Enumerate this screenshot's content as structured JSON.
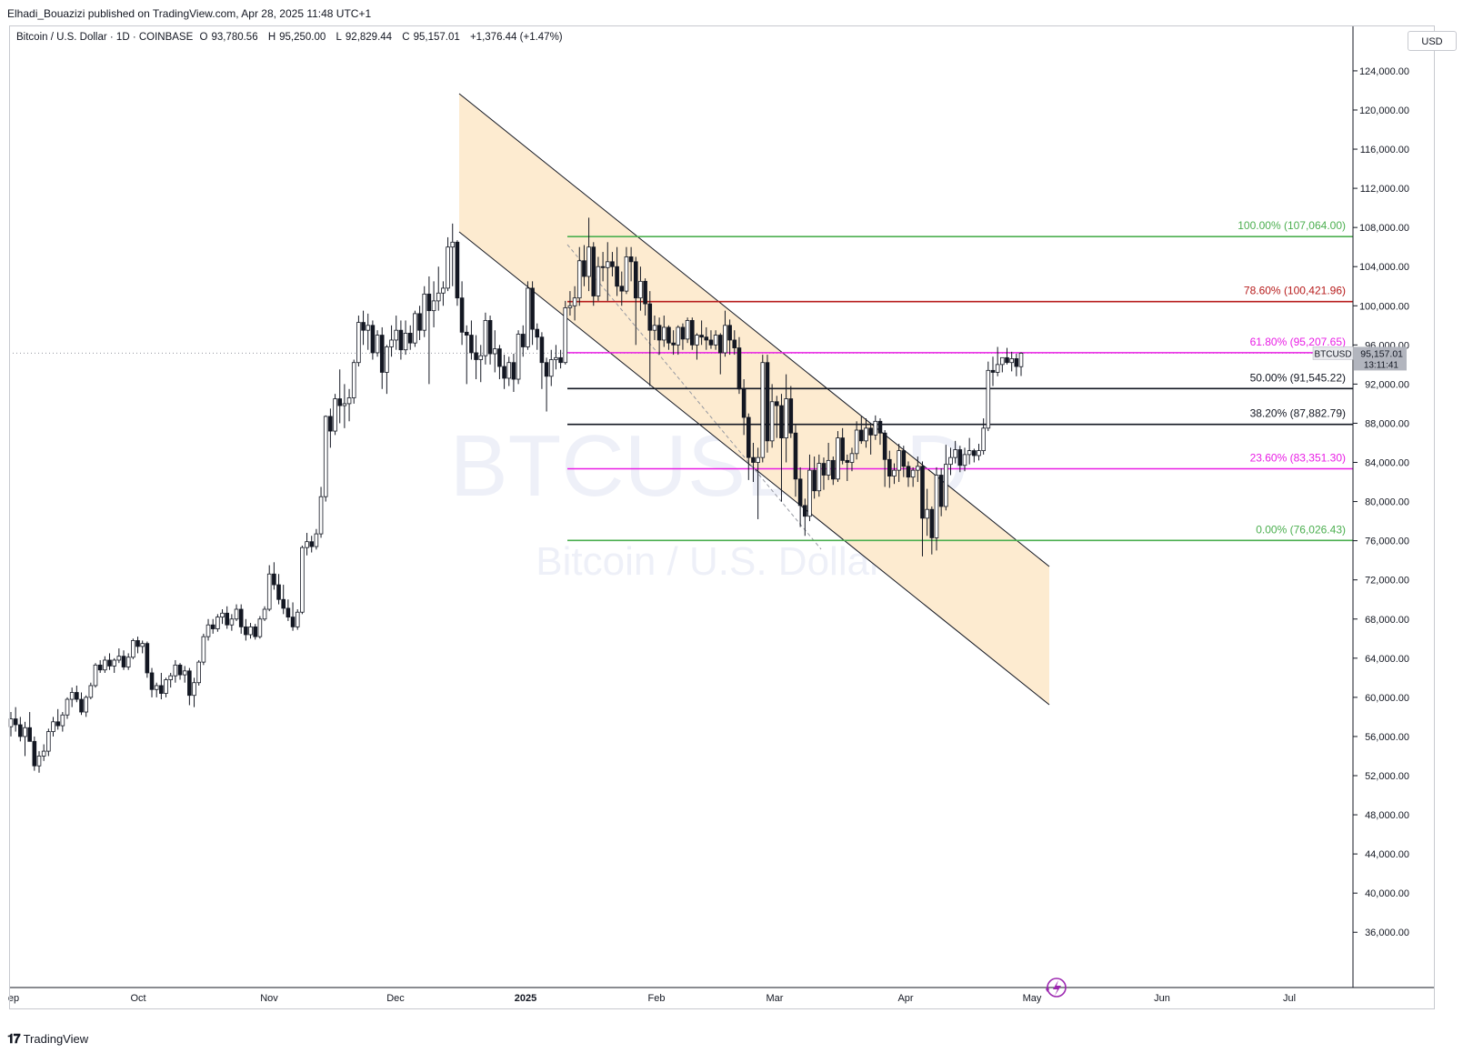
{
  "header": {
    "published": "Elhadi_Bouazizi published on TradingView.com, Apr 28, 2025 11:48 UTC+1"
  },
  "legend": {
    "symbol": "Bitcoin / U.S. Dollar · 1D · COINBASE",
    "o_label": "O",
    "o": "93,780.56",
    "h_label": "H",
    "h": "95,250.00",
    "l_label": "L",
    "l": "92,829.44",
    "c_label": "C",
    "c": "95,157.01",
    "change": "+1,376.44 (+1.47%)"
  },
  "currency": "USD",
  "watermark": {
    "ticker": "BTCUSD, 1D",
    "name": "Bitcoin / U.S. Dollar"
  },
  "price_label": {
    "symbol": "BTCUSD",
    "price": "95,157.01",
    "countdown": "13:11:41"
  },
  "footer": {
    "brand": "TradingView"
  },
  "colors": {
    "up": "#ffffff",
    "down": "#131722",
    "channel_fill": "#fdebd0",
    "grey_label": "#b2b5be"
  },
  "chart_data": {
    "type": "candlestick",
    "y_ticks": [
      "124,000.00",
      "120,000.00",
      "116,000.00",
      "112,000.00",
      "108,000.00",
      "104,000.00",
      "100,000.00",
      "96,000.00",
      "92,000.00",
      "88,000.00",
      "84,000.00",
      "80,000.00",
      "76,000.00",
      "72,000.00",
      "68,000.00",
      "64,000.00",
      "60,000.00",
      "56,000.00",
      "52,000.00",
      "48,000.00",
      "44,000.00",
      "40,000.00",
      "36,000.00"
    ],
    "ylim": [
      33000,
      129000
    ],
    "x_ticks": [
      "ep",
      "Oct",
      "Nov",
      "Dec",
      "2025",
      "Feb",
      "Mar",
      "Apr",
      "May",
      "Jun",
      "Jul"
    ],
    "fib_levels": [
      {
        "ratio": 1.0,
        "label": "100.00% (107,064.00)",
        "price": 107064.0,
        "color": "#4caf50"
      },
      {
        "ratio": 0.786,
        "label": "78.60% (100,421.96)",
        "price": 100421.96,
        "color": "#b71c1c"
      },
      {
        "ratio": 0.618,
        "label": "61.80% (95,207.65)",
        "price": 95207.65,
        "color": "#e91ee5"
      },
      {
        "ratio": 0.5,
        "label": "50.00% (91,545.22)",
        "price": 91545.22,
        "color": "#131722"
      },
      {
        "ratio": 0.382,
        "label": "38.20% (87,882.79)",
        "price": 87882.79,
        "color": "#131722"
      },
      {
        "ratio": 0.236,
        "label": "23.60% (83,351.30)",
        "price": 83351.3,
        "color": "#e91ee5"
      },
      {
        "ratio": 0.0,
        "label": "0.00% (76,026.43)",
        "price": 76026.43,
        "color": "#4caf50"
      }
    ],
    "last_price": 95157.01,
    "candles": [
      [
        57000,
        58500,
        56000,
        57800
      ],
      [
        57800,
        59000,
        56500,
        57200
      ],
      [
        57200,
        58000,
        55500,
        56000
      ],
      [
        56000,
        57500,
        54000,
        56900
      ],
      [
        56900,
        58500,
        56000,
        55500
      ],
      [
        55500,
        56000,
        52500,
        53000
      ],
      [
        53000,
        54500,
        52300,
        54000
      ],
      [
        54000,
        55200,
        53500,
        54500
      ],
      [
        54500,
        56800,
        54000,
        56500
      ],
      [
        56500,
        58000,
        56000,
        57500
      ],
      [
        57500,
        58800,
        56700,
        57100
      ],
      [
        57100,
        58500,
        56500,
        58200
      ],
      [
        58200,
        60000,
        57800,
        59800
      ],
      [
        59800,
        61000,
        59000,
        60500
      ],
      [
        60500,
        61200,
        59500,
        59800
      ],
      [
        59800,
        60500,
        58200,
        58500
      ],
      [
        58500,
        60200,
        58000,
        60000
      ],
      [
        60000,
        61500,
        59800,
        61200
      ],
      [
        61200,
        63500,
        61000,
        63300
      ],
      [
        63300,
        63800,
        62500,
        62800
      ],
      [
        62800,
        64200,
        62500,
        63800
      ],
      [
        63800,
        64500,
        62800,
        63200
      ],
      [
        63200,
        64000,
        62500,
        63800
      ],
      [
        63800,
        65000,
        63500,
        64200
      ],
      [
        64200,
        64800,
        62800,
        63100
      ],
      [
        63100,
        64500,
        62800,
        64100
      ],
      [
        64100,
        66000,
        63900,
        65800
      ],
      [
        65800,
        66200,
        64500,
        65200
      ],
      [
        65200,
        65800,
        64500,
        65500
      ],
      [
        65500,
        65700,
        62000,
        62500
      ],
      [
        62500,
        63000,
        60000,
        60800
      ],
      [
        60800,
        61500,
        60000,
        61200
      ],
      [
        61200,
        62500,
        59800,
        60400
      ],
      [
        60400,
        62000,
        60000,
        61800
      ],
      [
        61800,
        62500,
        61000,
        62200
      ],
      [
        62200,
        63800,
        61500,
        63300
      ],
      [
        63300,
        63500,
        61800,
        62300
      ],
      [
        62300,
        63200,
        61500,
        62700
      ],
      [
        62700,
        63000,
        59200,
        60200
      ],
      [
        60200,
        62000,
        59000,
        61500
      ],
      [
        61500,
        63800,
        61200,
        63600
      ],
      [
        63600,
        66500,
        63300,
        66200
      ],
      [
        66200,
        68000,
        65800,
        67400
      ],
      [
        67400,
        68000,
        66500,
        67000
      ],
      [
        67000,
        68500,
        66700,
        68200
      ],
      [
        68200,
        69000,
        67500,
        68600
      ],
      [
        68600,
        69300,
        67000,
        67400
      ],
      [
        67400,
        68500,
        66800,
        68000
      ],
      [
        68000,
        69500,
        67800,
        69000
      ],
      [
        69000,
        69500,
        66500,
        67200
      ],
      [
        67200,
        68000,
        65800,
        66400
      ],
      [
        66400,
        67600,
        66000,
        67200
      ],
      [
        67200,
        67500,
        65900,
        66200
      ],
      [
        66200,
        68300,
        66000,
        68000
      ],
      [
        68000,
        69300,
        67800,
        69000
      ],
      [
        69000,
        73500,
        68800,
        72600
      ],
      [
        72600,
        73800,
        71000,
        71500
      ],
      [
        71500,
        72600,
        69500,
        70000
      ],
      [
        70000,
        71500,
        68500,
        69100
      ],
      [
        69100,
        70000,
        67800,
        68200
      ],
      [
        68200,
        69700,
        66800,
        67200
      ],
      [
        67200,
        69000,
        66900,
        68700
      ],
      [
        68700,
        75500,
        68500,
        75300
      ],
      [
        75300,
        76800,
        74500,
        75900
      ],
      [
        75900,
        76500,
        74800,
        75400
      ],
      [
        75400,
        77200,
        75100,
        76700
      ],
      [
        76700,
        81500,
        76300,
        80500
      ],
      [
        80500,
        88800,
        80000,
        88700
      ],
      [
        88700,
        89500,
        85500,
        87200
      ],
      [
        87200,
        91000,
        86800,
        90500
      ],
      [
        90500,
        93500,
        88000,
        89800
      ],
      [
        89800,
        92000,
        87500,
        90000
      ],
      [
        90000,
        91500,
        88200,
        90600
      ],
      [
        90600,
        94500,
        90000,
        94200
      ],
      [
        94200,
        99000,
        93800,
        98300
      ],
      [
        98300,
        99500,
        96000,
        97500
      ],
      [
        97500,
        99200,
        95500,
        98000
      ],
      [
        98000,
        98500,
        94500,
        95200
      ],
      [
        95200,
        97500,
        94800,
        97000
      ],
      [
        97000,
        97800,
        91500,
        93200
      ],
      [
        93200,
        96000,
        91000,
        95800
      ],
      [
        95800,
        98000,
        94800,
        96500
      ],
      [
        96500,
        99000,
        95500,
        97500
      ],
      [
        97500,
        98500,
        94500,
        95500
      ],
      [
        95500,
        98500,
        95000,
        97200
      ],
      [
        97200,
        98000,
        95500,
        96200
      ],
      [
        96200,
        99500,
        95800,
        99200
      ],
      [
        99200,
        100000,
        96500,
        97500
      ],
      [
        97500,
        102000,
        96800,
        101200
      ],
      [
        101200,
        103000,
        92000,
        99500
      ],
      [
        99500,
        102500,
        97800,
        100500
      ],
      [
        100500,
        104000,
        99500,
        101300
      ],
      [
        101300,
        102500,
        100000,
        101800
      ],
      [
        101800,
        107000,
        101500,
        106000
      ],
      [
        106000,
        108400,
        102000,
        106500
      ],
      [
        106500,
        106700,
        100000,
        100800
      ],
      [
        100800,
        102500,
        96000,
        97300
      ],
      [
        97300,
        98000,
        92000,
        97000
      ],
      [
        97000,
        98500,
        94500,
        95200
      ],
      [
        95200,
        97000,
        92500,
        94500
      ],
      [
        94500,
        96000,
        92200,
        94900
      ],
      [
        94900,
        99300,
        94000,
        98500
      ],
      [
        98500,
        99000,
        94000,
        95100
      ],
      [
        95100,
        97500,
        93200,
        95600
      ],
      [
        95600,
        96000,
        92500,
        93800
      ],
      [
        93800,
        95000,
        91500,
        92600
      ],
      [
        92600,
        94800,
        91800,
        94200
      ],
      [
        94200,
        95100,
        91200,
        92500
      ],
      [
        92500,
        97500,
        92000,
        97100
      ],
      [
        97100,
        98000,
        94800,
        95800
      ],
      [
        95800,
        102500,
        95500,
        101800
      ],
      [
        101800,
        102500,
        96000,
        97600
      ],
      [
        97600,
        98200,
        95500,
        96800
      ],
      [
        96800,
        97300,
        91500,
        94200
      ],
      [
        94200,
        94700,
        89200,
        92800
      ],
      [
        92800,
        95500,
        91800,
        94500
      ],
      [
        94500,
        96000,
        93500,
        94700
      ],
      [
        94700,
        95500,
        93600,
        94200
      ],
      [
        94200,
        100500,
        94000,
        99800
      ],
      [
        99800,
        101500,
        99000,
        100000
      ],
      [
        100000,
        102000,
        98500,
        100800
      ],
      [
        100800,
        106000,
        100000,
        104600
      ],
      [
        104600,
        106200,
        102000,
        103000
      ],
      [
        103000,
        109000,
        101500,
        106000
      ],
      [
        106000,
        106500,
        100000,
        101000
      ],
      [
        101000,
        105000,
        100500,
        104000
      ],
      [
        104000,
        105500,
        102500,
        103900
      ],
      [
        103900,
        106500,
        100500,
        104500
      ],
      [
        104500,
        105500,
        103000,
        104000
      ],
      [
        104000,
        106000,
        101000,
        102000
      ],
      [
        102000,
        103500,
        100000,
        101500
      ],
      [
        101500,
        106000,
        101200,
        105000
      ],
      [
        105000,
        106000,
        102500,
        104500
      ],
      [
        104500,
        105000,
        96000,
        100800
      ],
      [
        100800,
        104000,
        99500,
        102500
      ],
      [
        102500,
        102800,
        99000,
        100200
      ],
      [
        100200,
        101500,
        91800,
        97500
      ],
      [
        97500,
        99000,
        96500,
        98000
      ],
      [
        98000,
        98800,
        95000,
        96500
      ],
      [
        96500,
        99000,
        95800,
        97800
      ],
      [
        97800,
        98000,
        95500,
        96200
      ],
      [
        96200,
        97500,
        95000,
        96000
      ],
      [
        96000,
        98000,
        95000,
        97800
      ],
      [
        97800,
        98200,
        95500,
        96600
      ],
      [
        96600,
        98800,
        96200,
        98500
      ],
      [
        98500,
        98800,
        95500,
        96000
      ],
      [
        96000,
        97200,
        94500,
        97000
      ],
      [
        97000,
        98500,
        96000,
        96800
      ],
      [
        96800,
        97800,
        95500,
        96500
      ],
      [
        96500,
        97500,
        95600,
        96000
      ],
      [
        96000,
        97500,
        95500,
        97000
      ],
      [
        97000,
        97200,
        93000,
        95200
      ],
      [
        95200,
        99500,
        94800,
        98000
      ],
      [
        98000,
        98600,
        95000,
        96500
      ],
      [
        96500,
        97500,
        95000,
        95700
      ],
      [
        95700,
        96800,
        91000,
        91500
      ],
      [
        91500,
        92500,
        86800,
        88600
      ],
      [
        88600,
        89000,
        82200,
        84500
      ],
      [
        84500,
        86000,
        82000,
        84000
      ],
      [
        84000,
        85500,
        78200,
        84500
      ],
      [
        84500,
        95000,
        84000,
        94200
      ],
      [
        94200,
        95000,
        85000,
        86200
      ],
      [
        86200,
        92000,
        85500,
        90200
      ],
      [
        90200,
        90800,
        86500,
        89800
      ],
      [
        89800,
        91000,
        80000,
        86500
      ],
      [
        86500,
        93000,
        84000,
        90500
      ],
      [
        90500,
        91800,
        86500,
        87000
      ],
      [
        87000,
        87800,
        80500,
        82300
      ],
      [
        82300,
        83500,
        77400,
        79600
      ],
      [
        79600,
        80300,
        76500,
        78500
      ],
      [
        78500,
        84800,
        78000,
        83200
      ],
      [
        83200,
        84600,
        80300,
        81100
      ],
      [
        81100,
        84800,
        80500,
        83900
      ],
      [
        83900,
        84500,
        81200,
        82700
      ],
      [
        82700,
        86000,
        82200,
        84200
      ],
      [
        84200,
        84600,
        81700,
        82300
      ],
      [
        82300,
        87200,
        82000,
        86500
      ],
      [
        86500,
        87500,
        83800,
        84200
      ],
      [
        84200,
        84800,
        82100,
        84000
      ],
      [
        84000,
        85500,
        83100,
        84900
      ],
      [
        84900,
        88200,
        84300,
        87300
      ],
      [
        87300,
        88700,
        85900,
        86200
      ],
      [
        86200,
        88500,
        85500,
        87500
      ],
      [
        87500,
        87900,
        84800,
        86800
      ],
      [
        86800,
        88800,
        86300,
        88200
      ],
      [
        88200,
        88500,
        85800,
        87000
      ],
      [
        87000,
        87300,
        81500,
        84300
      ],
      [
        84300,
        85200,
        81400,
        82600
      ],
      [
        82600,
        83900,
        81800,
        83200
      ],
      [
        83200,
        85900,
        82000,
        85200
      ],
      [
        85200,
        85700,
        82500,
        83600
      ],
      [
        83600,
        84100,
        81500,
        82500
      ],
      [
        82500,
        83500,
        81500,
        83200
      ],
      [
        83200,
        84600,
        82000,
        83600
      ],
      [
        83600,
        84100,
        74400,
        78300
      ],
      [
        78300,
        81300,
        76500,
        79200
      ],
      [
        79200,
        79500,
        74600,
        76300
      ],
      [
        76300,
        83500,
        75000,
        82700
      ],
      [
        82700,
        83400,
        78500,
        79500
      ],
      [
        79500,
        85800,
        79100,
        83800
      ],
      [
        83800,
        85500,
        82700,
        84500
      ],
      [
        84500,
        86200,
        83900,
        85300
      ],
      [
        85300,
        85700,
        83000,
        83700
      ],
      [
        83700,
        85500,
        83100,
        84800
      ],
      [
        84800,
        86500,
        83800,
        85200
      ],
      [
        85200,
        85400,
        84000,
        84700
      ],
      [
        84700,
        85900,
        84200,
        85200
      ],
      [
        85200,
        88500,
        84800,
        87500
      ],
      [
        87500,
        94300,
        87200,
        93400
      ],
      [
        93400,
        94800,
        91800,
        93200
      ],
      [
        93200,
        95800,
        92800,
        94000
      ],
      [
        94000,
        94600,
        93200,
        94700
      ],
      [
        94700,
        95700,
        94000,
        94200
      ],
      [
        94200,
        95300,
        93300,
        94600
      ],
      [
        94600,
        95100,
        92800,
        93800
      ],
      [
        93780.56,
        95250,
        92829.44,
        95157.01
      ]
    ]
  }
}
